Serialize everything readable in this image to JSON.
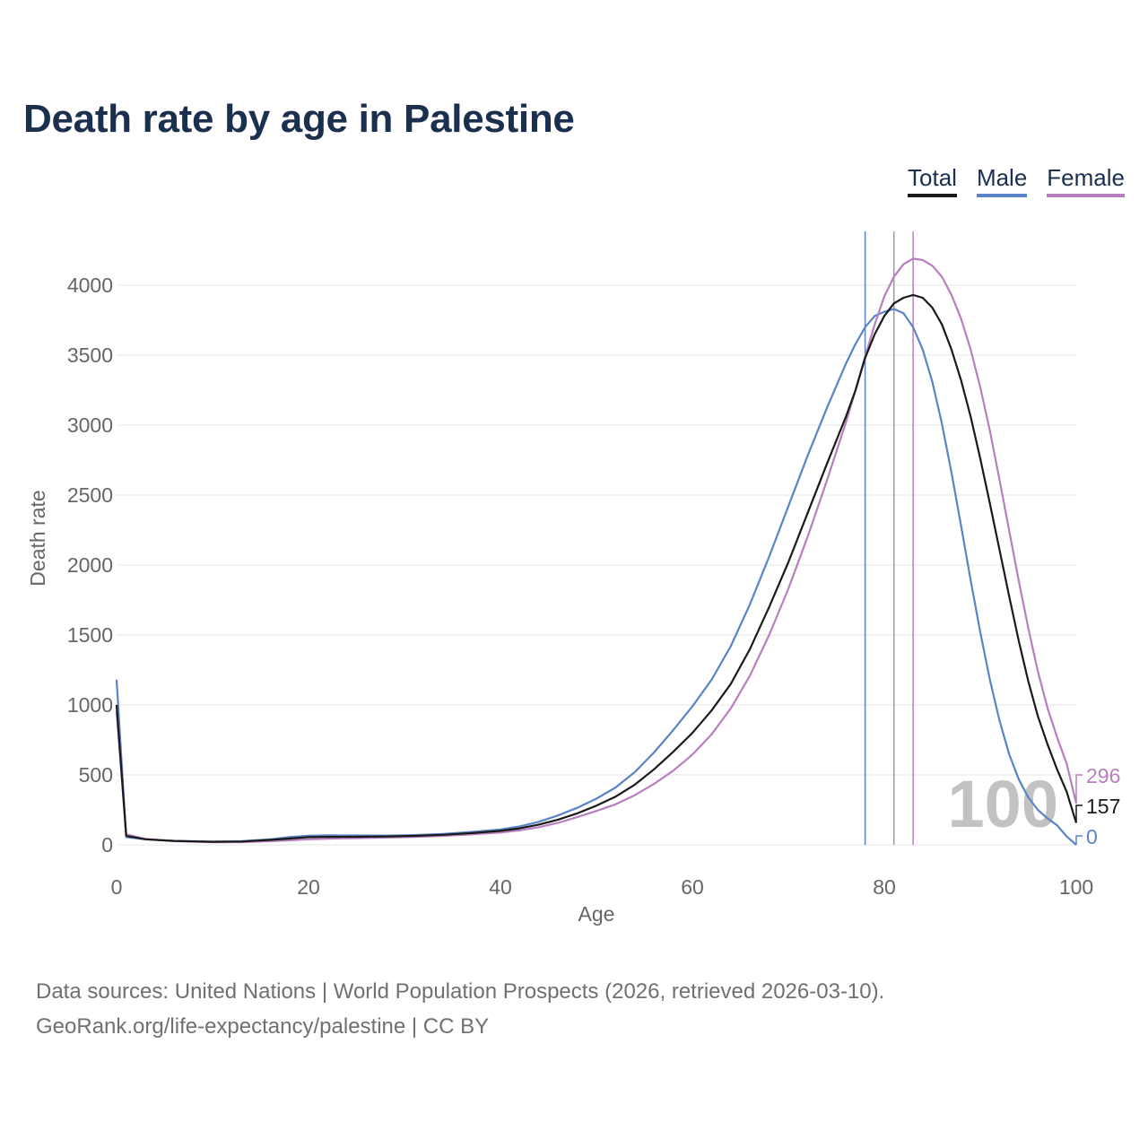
{
  "chart_data": {
    "type": "line",
    "title": "Death rate by age in Palestine",
    "xlabel": "Age",
    "ylabel": "Death rate",
    "xlim": [
      0,
      100
    ],
    "ylim": [
      0,
      4400
    ],
    "xticks": [
      0,
      20,
      40,
      60,
      80,
      100
    ],
    "yticks": [
      0,
      500,
      1000,
      1500,
      2000,
      2500,
      3000,
      3500,
      4000
    ],
    "watermark": "100",
    "series": [
      {
        "name": "Total",
        "color": "#1a1a1a",
        "end_label": "157",
        "marker_age": 81,
        "points": [
          [
            0,
            1000
          ],
          [
            1,
            65
          ],
          [
            3,
            40
          ],
          [
            6,
            28
          ],
          [
            10,
            22
          ],
          [
            13,
            24
          ],
          [
            16,
            35
          ],
          [
            18,
            45
          ],
          [
            20,
            55
          ],
          [
            22,
            57
          ],
          [
            25,
            58
          ],
          [
            28,
            60
          ],
          [
            31,
            64
          ],
          [
            34,
            72
          ],
          [
            37,
            84
          ],
          [
            40,
            100
          ],
          [
            42,
            118
          ],
          [
            44,
            145
          ],
          [
            46,
            180
          ],
          [
            48,
            225
          ],
          [
            50,
            280
          ],
          [
            52,
            345
          ],
          [
            54,
            430
          ],
          [
            56,
            540
          ],
          [
            58,
            665
          ],
          [
            60,
            800
          ],
          [
            62,
            960
          ],
          [
            64,
            1150
          ],
          [
            66,
            1400
          ],
          [
            68,
            1700
          ],
          [
            70,
            2020
          ],
          [
            72,
            2370
          ],
          [
            74,
            2720
          ],
          [
            76,
            3060
          ],
          [
            77,
            3250
          ],
          [
            78,
            3480
          ],
          [
            79,
            3650
          ],
          [
            80,
            3780
          ],
          [
            81,
            3870
          ],
          [
            82,
            3910
          ],
          [
            83,
            3930
          ],
          [
            84,
            3910
          ],
          [
            85,
            3840
          ],
          [
            86,
            3720
          ],
          [
            87,
            3540
          ],
          [
            88,
            3320
          ],
          [
            89,
            3060
          ],
          [
            90,
            2760
          ],
          [
            91,
            2440
          ],
          [
            92,
            2110
          ],
          [
            93,
            1780
          ],
          [
            94,
            1460
          ],
          [
            95,
            1170
          ],
          [
            96,
            920
          ],
          [
            97,
            720
          ],
          [
            98,
            540
          ],
          [
            99,
            380
          ],
          [
            100,
            157
          ]
        ]
      },
      {
        "name": "Male",
        "color": "#5a84c6",
        "end_label": "0",
        "marker_age": 78,
        "points": [
          [
            0,
            1180
          ],
          [
            1,
            55
          ],
          [
            3,
            40
          ],
          [
            6,
            28
          ],
          [
            10,
            23
          ],
          [
            13,
            26
          ],
          [
            16,
            40
          ],
          [
            18,
            55
          ],
          [
            20,
            65
          ],
          [
            22,
            68
          ],
          [
            25,
            67
          ],
          [
            28,
            66
          ],
          [
            31,
            70
          ],
          [
            34,
            78
          ],
          [
            37,
            92
          ],
          [
            40,
            110
          ],
          [
            42,
            132
          ],
          [
            44,
            165
          ],
          [
            46,
            210
          ],
          [
            48,
            265
          ],
          [
            50,
            330
          ],
          [
            52,
            410
          ],
          [
            54,
            520
          ],
          [
            56,
            660
          ],
          [
            58,
            820
          ],
          [
            60,
            990
          ],
          [
            62,
            1180
          ],
          [
            64,
            1420
          ],
          [
            66,
            1720
          ],
          [
            68,
            2060
          ],
          [
            70,
            2420
          ],
          [
            72,
            2780
          ],
          [
            74,
            3120
          ],
          [
            76,
            3440
          ],
          [
            77,
            3580
          ],
          [
            78,
            3700
          ],
          [
            79,
            3780
          ],
          [
            80,
            3810
          ],
          [
            81,
            3830
          ],
          [
            82,
            3800
          ],
          [
            83,
            3700
          ],
          [
            84,
            3540
          ],
          [
            85,
            3310
          ],
          [
            86,
            3010
          ],
          [
            87,
            2660
          ],
          [
            88,
            2280
          ],
          [
            89,
            1890
          ],
          [
            90,
            1520
          ],
          [
            91,
            1180
          ],
          [
            92,
            890
          ],
          [
            93,
            650
          ],
          [
            94,
            470
          ],
          [
            95,
            340
          ],
          [
            96,
            250
          ],
          [
            97,
            190
          ],
          [
            98,
            140
          ],
          [
            99,
            60
          ],
          [
            100,
            0
          ]
        ]
      },
      {
        "name": "Female",
        "color": "#b77fbd",
        "end_label": "296",
        "marker_age": 83,
        "points": [
          [
            0,
            950
          ],
          [
            1,
            75
          ],
          [
            3,
            42
          ],
          [
            6,
            26
          ],
          [
            10,
            19
          ],
          [
            13,
            19
          ],
          [
            16,
            26
          ],
          [
            18,
            32
          ],
          [
            20,
            40
          ],
          [
            22,
            44
          ],
          [
            25,
            48
          ],
          [
            28,
            52
          ],
          [
            31,
            57
          ],
          [
            34,
            64
          ],
          [
            37,
            75
          ],
          [
            40,
            88
          ],
          [
            42,
            104
          ],
          [
            44,
            126
          ],
          [
            46,
            158
          ],
          [
            48,
            198
          ],
          [
            50,
            242
          ],
          [
            52,
            290
          ],
          [
            54,
            355
          ],
          [
            56,
            435
          ],
          [
            58,
            530
          ],
          [
            60,
            645
          ],
          [
            62,
            790
          ],
          [
            64,
            975
          ],
          [
            66,
            1210
          ],
          [
            68,
            1500
          ],
          [
            70,
            1830
          ],
          [
            72,
            2200
          ],
          [
            74,
            2600
          ],
          [
            76,
            3020
          ],
          [
            77,
            3250
          ],
          [
            78,
            3490
          ],
          [
            79,
            3720
          ],
          [
            80,
            3920
          ],
          [
            81,
            4060
          ],
          [
            82,
            4150
          ],
          [
            83,
            4190
          ],
          [
            84,
            4180
          ],
          [
            85,
            4140
          ],
          [
            86,
            4060
          ],
          [
            87,
            3930
          ],
          [
            88,
            3760
          ],
          [
            89,
            3540
          ],
          [
            90,
            3270
          ],
          [
            91,
            2960
          ],
          [
            92,
            2610
          ],
          [
            93,
            2250
          ],
          [
            94,
            1890
          ],
          [
            95,
            1550
          ],
          [
            96,
            1240
          ],
          [
            97,
            980
          ],
          [
            98,
            770
          ],
          [
            99,
            580
          ],
          [
            100,
            296
          ]
        ]
      }
    ]
  },
  "legend": {
    "total": "Total",
    "male": "Male",
    "female": "Female"
  },
  "footer": {
    "line1": "Data sources: United Nations | World Population Prospects (2026, retrieved 2026-03-10).",
    "line2": "GeoRank.org/life-expectancy/palestine | CC BY"
  }
}
